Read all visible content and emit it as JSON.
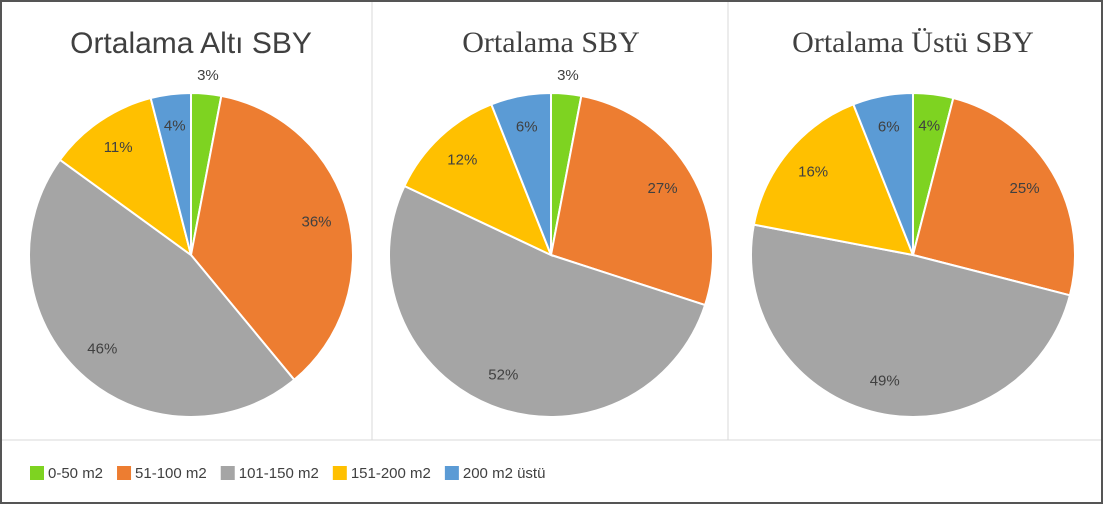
{
  "legend": {
    "categories": [
      "0-50 m2",
      "51-100 m2",
      "101-150 m2",
      "151-200 m2",
      "200 m2 üstü"
    ],
    "colors": [
      "#7ed321",
      "#ed7d31",
      "#a5a5a5",
      "#ffc000",
      "#5b9bd5"
    ]
  },
  "chart_data": [
    {
      "type": "pie",
      "title": "Ortalama Altı SBY",
      "values": [
        3,
        36,
        46,
        11,
        4
      ],
      "value_labels": [
        "3%",
        "36%",
        "46%",
        "11%",
        "4%"
      ]
    },
    {
      "type": "pie",
      "title": "Ortalama SBY",
      "values": [
        3,
        27,
        52,
        12,
        6
      ],
      "value_labels": [
        "3%",
        "27%",
        "52%",
        "12%",
        "6%"
      ]
    },
    {
      "type": "pie",
      "title": "Ortalama Üstü SBY",
      "values": [
        4,
        25,
        49,
        16,
        6
      ],
      "value_labels": [
        "4%",
        "25%",
        "49%",
        "16%",
        "6%"
      ]
    }
  ]
}
